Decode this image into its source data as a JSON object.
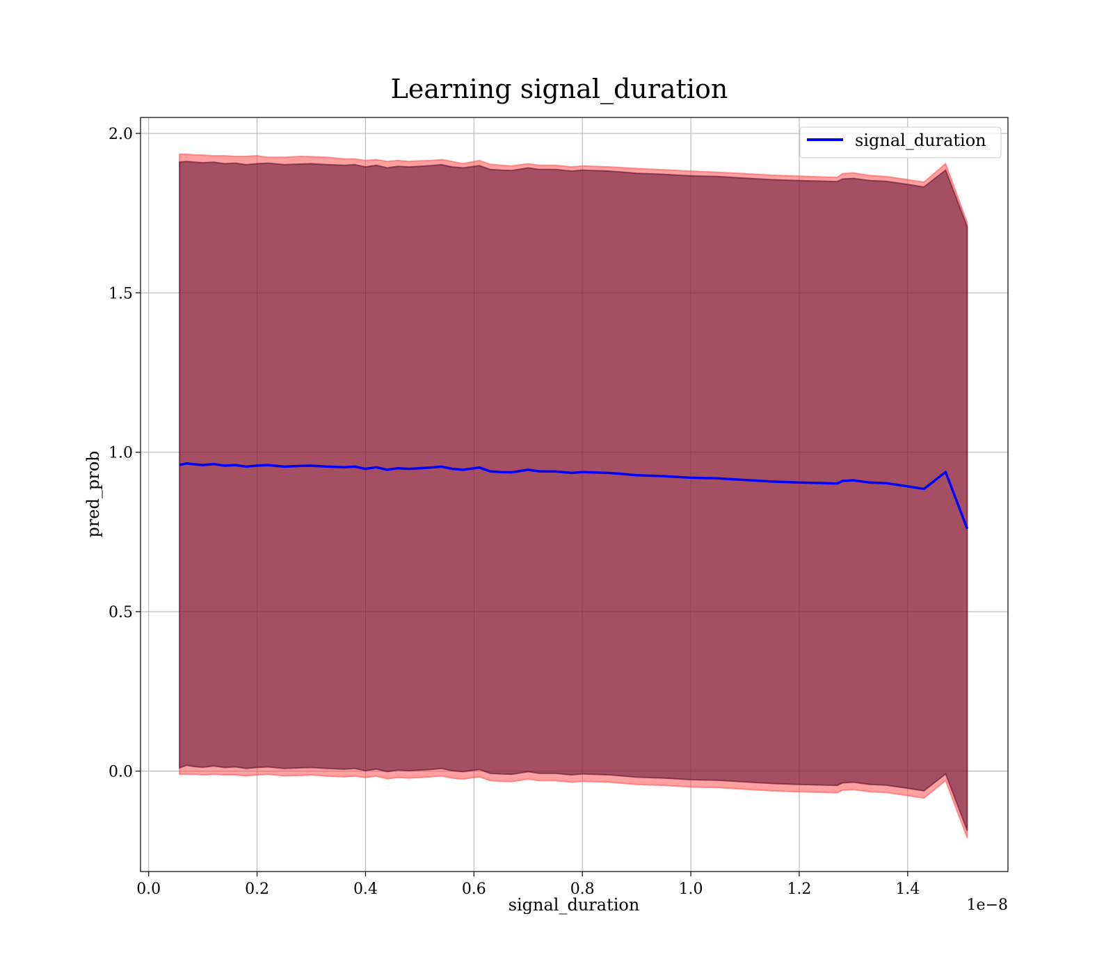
{
  "chart_data": {
    "type": "line",
    "title": "Learning signal_duration",
    "xlabel": "signal_duration",
    "ylabel": "pred_prob",
    "x_scale_label": "1e−8",
    "x_scale": 1e-08,
    "xlim": [
      -0.015,
      1.585
    ],
    "ylim": [
      -0.315,
      2.05
    ],
    "x_ticks": [
      0.0,
      0.2,
      0.4,
      0.6,
      0.8,
      1.0,
      1.2,
      1.4
    ],
    "x_tick_labels": [
      "0.0",
      "0.2",
      "0.4",
      "0.6",
      "0.8",
      "1.0",
      "1.2",
      "1.4"
    ],
    "y_ticks": [
      0.0,
      0.5,
      1.0,
      1.5,
      2.0
    ],
    "y_tick_labels": [
      "0.0",
      "0.5",
      "1.0",
      "1.5",
      "2.0"
    ],
    "grid": true,
    "legend_position": "top-right",
    "series": [
      {
        "name": "signal_duration",
        "color": "#0000ff",
        "x": [
          0.057,
          0.07,
          0.085,
          0.1,
          0.12,
          0.14,
          0.16,
          0.18,
          0.2,
          0.22,
          0.25,
          0.28,
          0.3,
          0.33,
          0.36,
          0.38,
          0.4,
          0.42,
          0.44,
          0.46,
          0.48,
          0.5,
          0.52,
          0.54,
          0.56,
          0.58,
          0.61,
          0.63,
          0.65,
          0.67,
          0.7,
          0.72,
          0.75,
          0.78,
          0.8,
          0.85,
          0.9,
          0.95,
          1.0,
          1.05,
          1.1,
          1.15,
          1.2,
          1.25,
          1.27,
          1.28,
          1.3,
          1.33,
          1.36,
          1.4,
          1.43,
          1.47,
          1.51
        ],
        "y": [
          0.96,
          0.965,
          0.962,
          0.96,
          0.963,
          0.958,
          0.96,
          0.955,
          0.958,
          0.96,
          0.955,
          0.957,
          0.958,
          0.955,
          0.953,
          0.955,
          0.948,
          0.953,
          0.945,
          0.95,
          0.948,
          0.95,
          0.952,
          0.955,
          0.948,
          0.945,
          0.952,
          0.94,
          0.938,
          0.937,
          0.945,
          0.94,
          0.94,
          0.935,
          0.938,
          0.935,
          0.928,
          0.925,
          0.92,
          0.918,
          0.913,
          0.908,
          0.905,
          0.903,
          0.902,
          0.91,
          0.912,
          0.905,
          0.903,
          0.893,
          0.885,
          0.938,
          0.76
        ]
      }
    ],
    "bands": [
      {
        "color": "#ff4444",
        "upper": [
          1.935,
          1.935,
          1.933,
          1.932,
          1.93,
          1.93,
          1.928,
          1.928,
          1.93,
          1.925,
          1.925,
          1.928,
          1.927,
          1.925,
          1.92,
          1.92,
          1.915,
          1.918,
          1.912,
          1.915,
          1.912,
          1.914,
          1.915,
          1.918,
          1.912,
          1.905,
          1.915,
          1.903,
          1.9,
          1.898,
          1.905,
          1.9,
          1.9,
          1.895,
          1.898,
          1.895,
          1.89,
          1.886,
          1.882,
          1.878,
          1.874,
          1.869,
          1.866,
          1.863,
          1.862,
          1.874,
          1.876,
          1.868,
          1.865,
          1.855,
          1.847,
          1.905,
          1.72
        ],
        "lower": [
          -0.01,
          -0.01,
          -0.01,
          -0.012,
          -0.01,
          -0.012,
          -0.012,
          -0.015,
          -0.012,
          -0.01,
          -0.015,
          -0.014,
          -0.012,
          -0.016,
          -0.018,
          -0.016,
          -0.02,
          -0.016,
          -0.024,
          -0.02,
          -0.022,
          -0.02,
          -0.018,
          -0.015,
          -0.022,
          -0.025,
          -0.018,
          -0.03,
          -0.032,
          -0.033,
          -0.025,
          -0.03,
          -0.03,
          -0.035,
          -0.032,
          -0.035,
          -0.042,
          -0.045,
          -0.05,
          -0.052,
          -0.057,
          -0.062,
          -0.065,
          -0.067,
          -0.068,
          -0.06,
          -0.058,
          -0.065,
          -0.067,
          -0.077,
          -0.085,
          -0.03,
          -0.21
        ]
      },
      {
        "color": "#4b0023",
        "upper": [
          1.91,
          1.912,
          1.91,
          1.908,
          1.91,
          1.905,
          1.907,
          1.902,
          1.905,
          1.907,
          1.902,
          1.904,
          1.905,
          1.902,
          1.9,
          1.902,
          1.895,
          1.9,
          1.892,
          1.897,
          1.895,
          1.897,
          1.899,
          1.902,
          1.895,
          1.892,
          1.899,
          1.887,
          1.885,
          1.884,
          1.892,
          1.887,
          1.887,
          1.882,
          1.885,
          1.882,
          1.875,
          1.872,
          1.867,
          1.865,
          1.86,
          1.855,
          1.852,
          1.85,
          1.849,
          1.857,
          1.859,
          1.852,
          1.85,
          1.84,
          1.832,
          1.885,
          1.707
        ],
        "lower": [
          0.01,
          0.018,
          0.014,
          0.012,
          0.016,
          0.011,
          0.013,
          0.008,
          0.011,
          0.013,
          0.008,
          0.01,
          0.011,
          0.008,
          0.006,
          0.008,
          0.001,
          0.006,
          -0.002,
          0.003,
          0.001,
          0.003,
          0.005,
          0.008,
          0.001,
          -0.002,
          0.005,
          -0.007,
          -0.009,
          -0.01,
          -0.002,
          -0.007,
          -0.007,
          -0.012,
          -0.009,
          -0.012,
          -0.019,
          -0.022,
          -0.027,
          -0.029,
          -0.034,
          -0.039,
          -0.042,
          -0.044,
          -0.045,
          -0.037,
          -0.035,
          -0.042,
          -0.044,
          -0.054,
          -0.062,
          -0.009,
          -0.187
        ]
      }
    ]
  }
}
